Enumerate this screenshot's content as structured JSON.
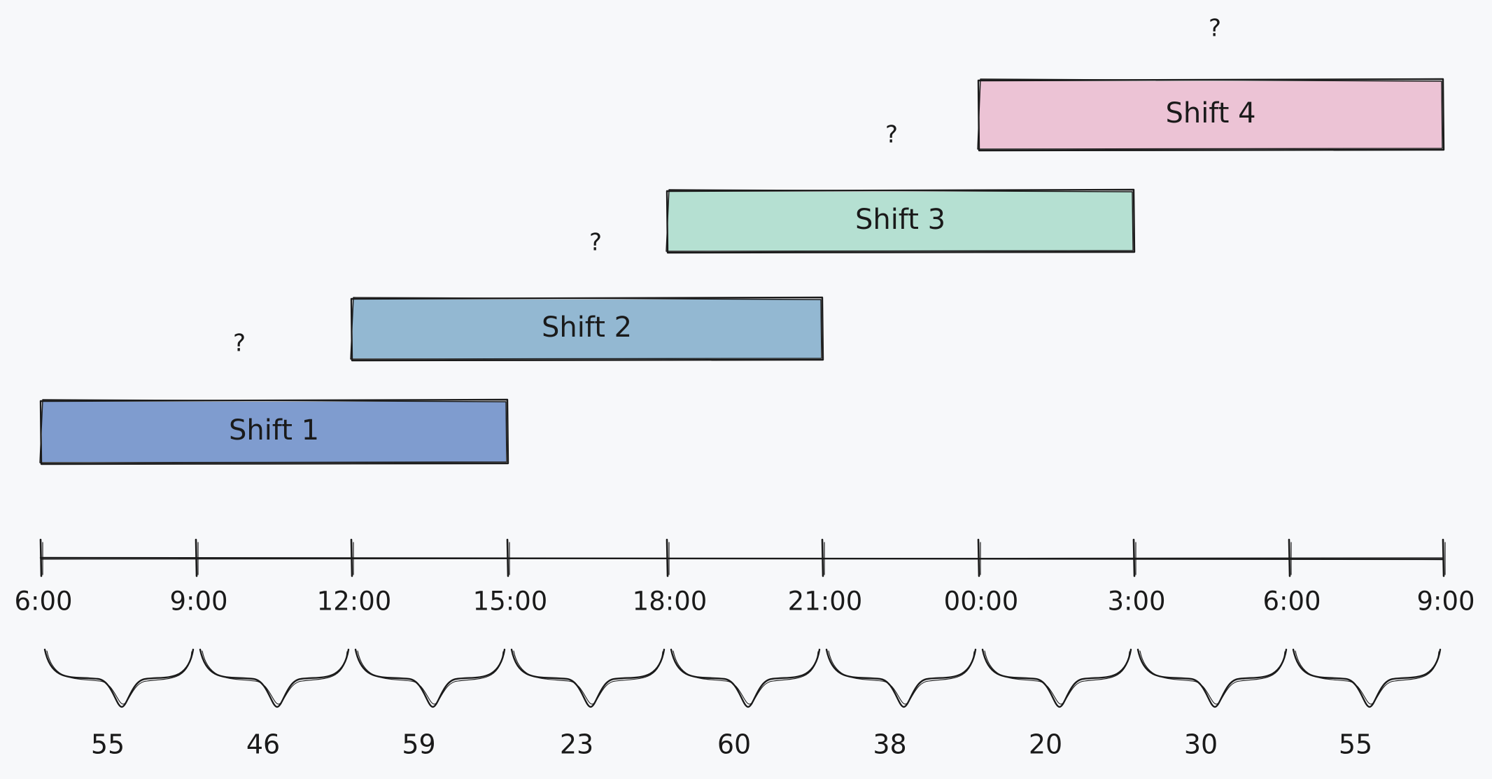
{
  "shifts": [
    {
      "label": "Shift 1",
      "start_index": 0,
      "end_index": 3,
      "fill": "#7f9ccf",
      "question": "?"
    },
    {
      "label": "Shift 2",
      "start_index": 2,
      "end_index": 5,
      "fill": "#93b8d2",
      "question": "?"
    },
    {
      "label": "Shift 3",
      "start_index": 4,
      "end_index": 7,
      "fill": "#b5e0d2",
      "question": "?"
    },
    {
      "label": "Shift 4",
      "start_index": 6,
      "end_index": 9,
      "fill": "#ecc3d5",
      "question": "?"
    }
  ],
  "timeline": {
    "ticks": [
      "6:00",
      "9:00",
      "12:00",
      "15:00",
      "18:00",
      "21:00",
      "00:00",
      "3:00",
      "6:00",
      "9:00"
    ]
  },
  "interval_counts": [
    "55",
    "46",
    "59",
    "23",
    "60",
    "38",
    "20",
    "30",
    "55"
  ],
  "colors": {
    "ink": "#1a1a1a",
    "background": "#f7f8fa"
  }
}
